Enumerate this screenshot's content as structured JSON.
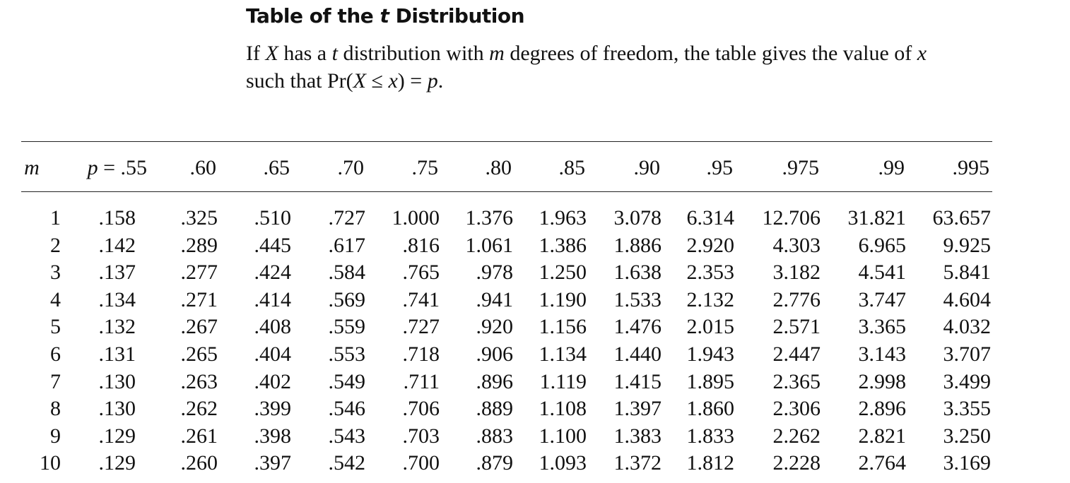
{
  "title": {
    "prefix": "Table of the ",
    "var": "t",
    "suffix": " Distribution"
  },
  "intro": {
    "line1": [
      {
        "t": "If "
      },
      {
        "t": "X",
        "i": true
      },
      {
        "t": " has a "
      },
      {
        "t": "t",
        "i": true
      },
      {
        "t": " distribution with "
      },
      {
        "t": "m",
        "i": true
      },
      {
        "t": " degrees of freedom, the table gives the value of "
      },
      {
        "t": "x",
        "i": true
      }
    ],
    "line2": [
      {
        "t": "such that Pr("
      },
      {
        "t": "X",
        "i": true
      },
      {
        "t": " ≤ "
      },
      {
        "t": "x",
        "i": true
      },
      {
        "t": ") = "
      },
      {
        "t": "p",
        "i": true
      },
      {
        "t": "."
      }
    ]
  },
  "table": {
    "row_header": "m",
    "p_symbol": "p",
    "p_equals": " = ",
    "columns": [
      ".55",
      ".60",
      ".65",
      ".70",
      ".75",
      ".80",
      ".85",
      ".90",
      ".95",
      ".975",
      ".99",
      ".995"
    ],
    "rows": [
      {
        "m": "1",
        "values": [
          ".158",
          ".325",
          ".510",
          ".727",
          "1.000",
          "1.376",
          "1.963",
          "3.078",
          "6.314",
          "12.706",
          "31.821",
          "63.657"
        ]
      },
      {
        "m": "2",
        "values": [
          ".142",
          ".289",
          ".445",
          ".617",
          ".816",
          "1.061",
          "1.386",
          "1.886",
          "2.920",
          "4.303",
          "6.965",
          "9.925"
        ]
      },
      {
        "m": "3",
        "values": [
          ".137",
          ".277",
          ".424",
          ".584",
          ".765",
          ".978",
          "1.250",
          "1.638",
          "2.353",
          "3.182",
          "4.541",
          "5.841"
        ]
      },
      {
        "m": "4",
        "values": [
          ".134",
          ".271",
          ".414",
          ".569",
          ".741",
          ".941",
          "1.190",
          "1.533",
          "2.132",
          "2.776",
          "3.747",
          "4.604"
        ]
      },
      {
        "m": "5",
        "values": [
          ".132",
          ".267",
          ".408",
          ".559",
          ".727",
          ".920",
          "1.156",
          "1.476",
          "2.015",
          "2.571",
          "3.365",
          "4.032"
        ]
      },
      {
        "m": "6",
        "values": [
          ".131",
          ".265",
          ".404",
          ".553",
          ".718",
          ".906",
          "1.134",
          "1.440",
          "1.943",
          "2.447",
          "3.143",
          "3.707"
        ]
      },
      {
        "m": "7",
        "values": [
          ".130",
          ".263",
          ".402",
          ".549",
          ".711",
          ".896",
          "1.119",
          "1.415",
          "1.895",
          "2.365",
          "2.998",
          "3.499"
        ]
      },
      {
        "m": "8",
        "values": [
          ".130",
          ".262",
          ".399",
          ".546",
          ".706",
          ".889",
          "1.108",
          "1.397",
          "1.860",
          "2.306",
          "2.896",
          "3.355"
        ]
      },
      {
        "m": "9",
        "values": [
          ".129",
          ".261",
          ".398",
          ".543",
          ".703",
          ".883",
          "1.100",
          "1.383",
          "1.833",
          "2.262",
          "2.821",
          "3.250"
        ]
      },
      {
        "m": "10",
        "values": [
          ".129",
          ".260",
          ".397",
          ".542",
          ".700",
          ".879",
          "1.093",
          "1.372",
          "1.812",
          "2.228",
          "2.764",
          "3.169"
        ]
      }
    ]
  }
}
